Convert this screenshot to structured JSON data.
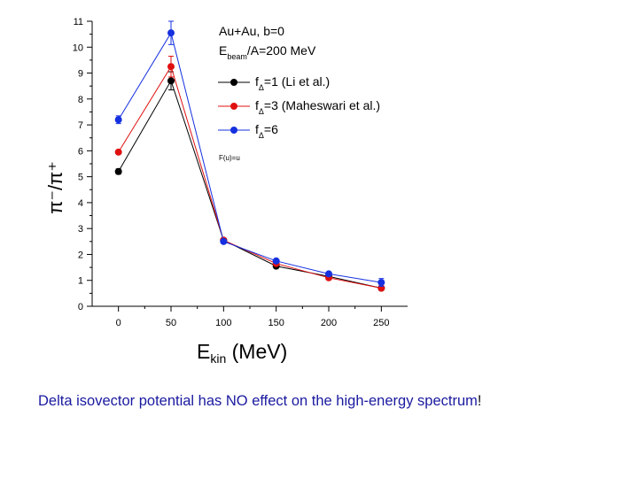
{
  "chart_data": {
    "type": "line",
    "x": [
      0,
      50,
      100,
      150,
      200,
      250
    ],
    "xlim": [
      -25,
      275
    ],
    "ylim": [
      0,
      11
    ],
    "xticks": [
      0,
      50,
      100,
      150,
      200,
      250
    ],
    "yticks": [
      0,
      1,
      2,
      3,
      4,
      5,
      6,
      7,
      8,
      9,
      10,
      11
    ],
    "xlabel_main": "E",
    "xlabel_sub": "kin",
    "xlabel_unit": " (MeV)",
    "ylabel_text": "π⁻/π⁺",
    "grid": false,
    "legend_placement": "top-right",
    "annotation_lines": [
      {
        "main": "Au+Au, b=0",
        "sub": "",
        "after": ""
      },
      {
        "main": "E",
        "sub": "beam",
        "after": "/A=200 MeV"
      }
    ],
    "series": [
      {
        "name": "f",
        "name_sub": "Δ",
        "name_after": "=1 (Li et al.)",
        "color": "#000000",
        "values": [
          5.2,
          8.7,
          2.55,
          1.55,
          1.15,
          0.7
        ],
        "errors": [
          0.1,
          0.35,
          0.05,
          0.05,
          0.05,
          0.08
        ]
      },
      {
        "name": "f",
        "name_sub": "Δ",
        "name_after": "=3 (Maheswari et al.)",
        "color": "#e01010",
        "values": [
          5.95,
          9.25,
          2.55,
          1.65,
          1.1,
          0.7
        ],
        "errors": [
          0.05,
          0.4,
          0.05,
          0.05,
          0.05,
          0.08
        ]
      },
      {
        "name": "f",
        "name_sub": "Δ",
        "name_after": "=6",
        "color": "#1530e0",
        "values": [
          7.2,
          10.55,
          2.5,
          1.75,
          1.25,
          0.92
        ],
        "errors": [
          0.15,
          0.45,
          0.05,
          0.05,
          0.05,
          0.15
        ]
      }
    ],
    "small_note": "F(u)=u"
  },
  "caption": {
    "main": "Delta isovector potential has NO effect on the high-energy spectrum",
    "end": "!"
  }
}
